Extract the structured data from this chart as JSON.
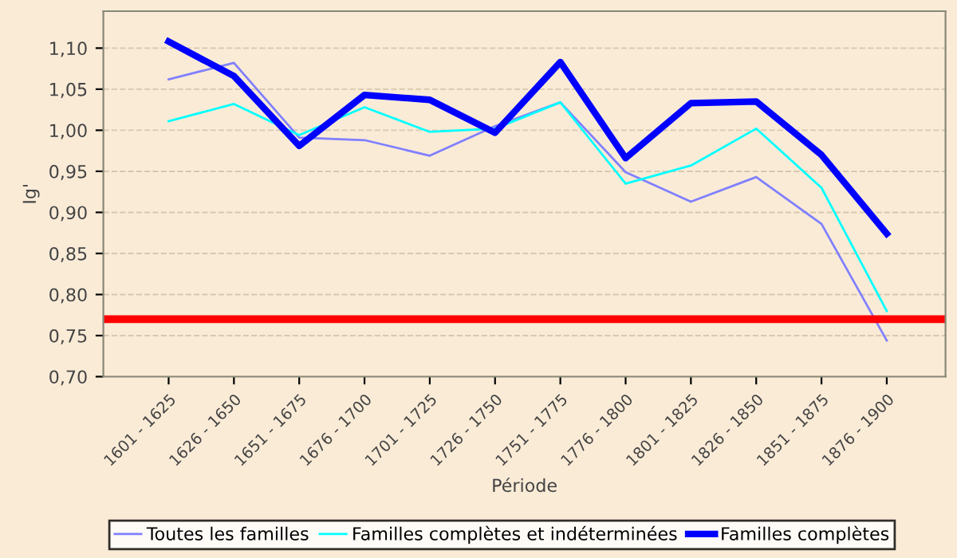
{
  "chart_data": {
    "type": "line",
    "xlabel": "Période",
    "ylabel": "Ig'",
    "categories": [
      "1601 - 1625",
      "1626 - 1650",
      "1651 - 1675",
      "1676 - 1700",
      "1701 - 1725",
      "1726 - 1750",
      "1751 - 1775",
      "1776 - 1800",
      "1801 - 1825",
      "1826 - 1850",
      "1851 - 1875",
      "1876 - 1900"
    ],
    "series": [
      {
        "name": "Toutes les familles",
        "color": "#8080ff",
        "values": [
          1.062,
          1.082,
          0.991,
          0.988,
          0.969,
          1.005,
          1.034,
          0.949,
          0.913,
          0.943,
          0.886,
          0.744
        ]
      },
      {
        "name": "Familles complètes et indéterminées",
        "color": "#00ffff",
        "values": [
          1.011,
          1.032,
          0.994,
          1.028,
          0.998,
          1.002,
          1.034,
          0.935,
          0.957,
          1.002,
          0.93,
          0.78
        ]
      },
      {
        "name": "Familles complètes",
        "color": "#0000ff",
        "values": [
          1.108,
          1.066,
          0.981,
          1.043,
          1.037,
          0.997,
          1.083,
          0.966,
          1.033,
          1.035,
          0.97,
          0.874
        ]
      }
    ],
    "ylim": [
      0.7,
      1.145
    ],
    "yticks": [
      {
        "value": 0.7,
        "label": "0,70"
      },
      {
        "value": 0.75,
        "label": "0,75"
      },
      {
        "value": 0.8,
        "label": "0,80"
      },
      {
        "value": 0.85,
        "label": "0,85"
      },
      {
        "value": 0.9,
        "label": "0,90"
      },
      {
        "value": 0.95,
        "label": "0,95"
      },
      {
        "value": 1.0,
        "label": "1,00"
      },
      {
        "value": 1.05,
        "label": "1,05"
      },
      {
        "value": 1.1,
        "label": "1,10"
      }
    ],
    "ref_lines": [
      {
        "axis": "y",
        "value": 0.77,
        "color": "#ff0000"
      }
    ],
    "grid": "y",
    "legend": "bottom",
    "marker": "none",
    "line_style": "solid"
  }
}
